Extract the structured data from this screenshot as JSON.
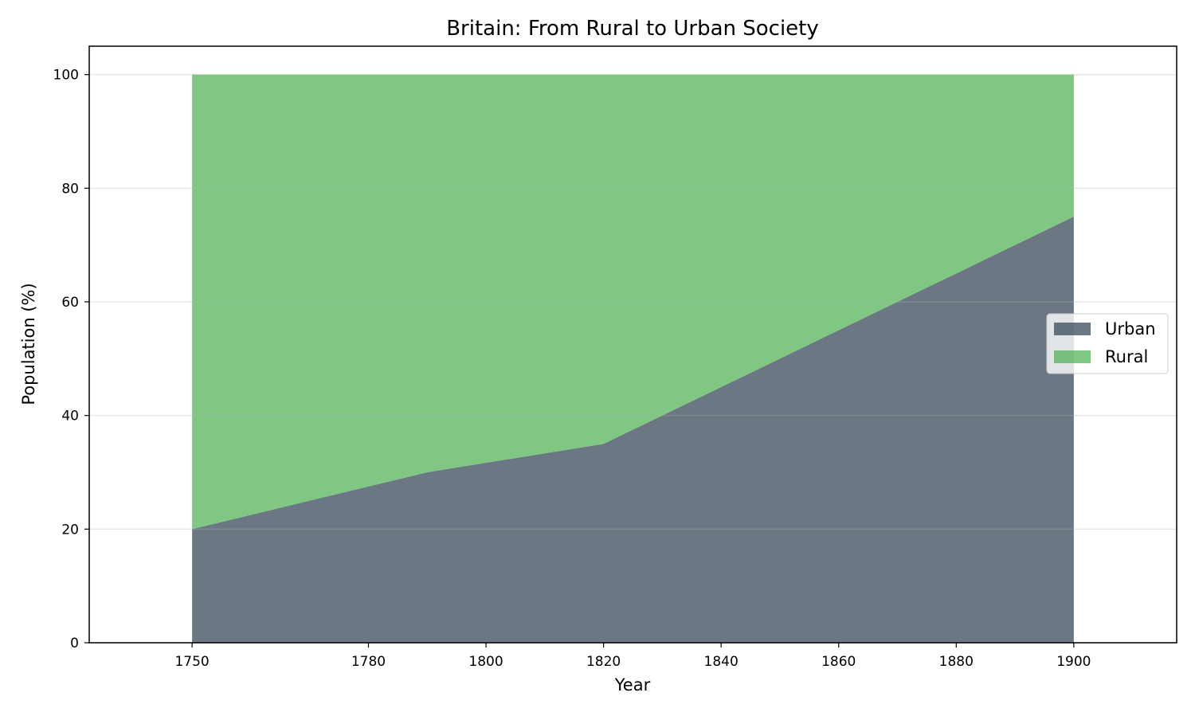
{
  "chart_data": {
    "type": "area",
    "stacked": true,
    "title": "Britain: From Rural to Urban Society",
    "xlabel": "Year",
    "ylabel": "Population (%)",
    "x": [
      1750,
      1770,
      1790,
      1820,
      1840,
      1860,
      1880,
      1900
    ],
    "xlim": [
      1732.5,
      1917.5
    ],
    "ylim": [
      0,
      105
    ],
    "xticks": [
      "1750",
      "1780",
      "1800",
      "1820",
      "1840",
      "1860",
      "1880",
      "1900"
    ],
    "yticks": [
      "0",
      "20",
      "40",
      "60",
      "80",
      "100"
    ],
    "grid": true,
    "grid_axis": "y",
    "legend_position": "center-right",
    "series": [
      {
        "name": "Urban",
        "values": [
          20,
          25,
          30,
          35,
          45,
          55,
          65,
          75
        ],
        "color": "#2c3e50"
      },
      {
        "name": "Rural",
        "values": [
          80,
          75,
          70,
          65,
          55,
          45,
          35,
          25
        ],
        "color": "#4caf50"
      }
    ],
    "fill_opacity": 0.7
  }
}
